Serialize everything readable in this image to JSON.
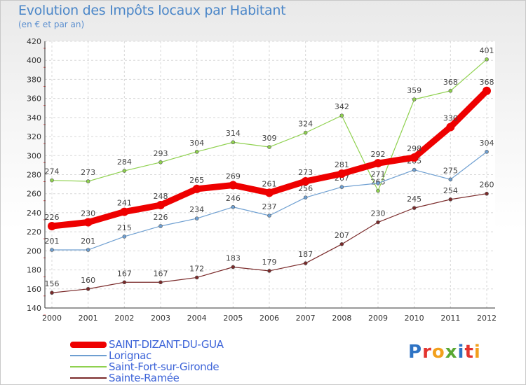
{
  "header": {
    "title": "Evolution des Impôts locaux par Habitant",
    "subtitle": "(en € et par an)"
  },
  "logo": {
    "text": "Proxiti",
    "letters": [
      {
        "ch": "P",
        "color": "#2e73c4"
      },
      {
        "ch": "r",
        "color": "#e3342f"
      },
      {
        "ch": "o",
        "color": "#f2a01c"
      },
      {
        "ch": "x",
        "color": "#5aa833"
      },
      {
        "ch": "i",
        "color": "#2e73c4"
      },
      {
        "ch": "t",
        "color": "#e3342f"
      },
      {
        "ch": "i",
        "color": "#f2a01c"
      }
    ]
  },
  "chart_data": {
    "type": "line",
    "title": "Evolution des Impôts locaux par Habitant",
    "subtitle": "(en € et par an)",
    "x": [
      "2000",
      "2001",
      "2002",
      "2003",
      "2004",
      "2005",
      "2006",
      "2007",
      "2008",
      "2009",
      "2010",
      "2011",
      "2012"
    ],
    "ylim": [
      140,
      420
    ],
    "yticks": [
      140,
      160,
      180,
      200,
      220,
      240,
      260,
      280,
      300,
      320,
      340,
      360,
      380,
      400,
      420
    ],
    "grid": true,
    "legend_position": "bottom-left",
    "series": [
      {
        "name": "Saint-Fort-sur-Gironde",
        "color": "#8fd14f",
        "width": 1.2,
        "marker": 5,
        "label_above": true,
        "values": [
          274,
          273,
          284,
          293,
          304,
          314,
          309,
          324,
          342,
          263,
          359,
          368,
          401
        ]
      },
      {
        "name": "Lorignac",
        "color": "#6e9fd1",
        "width": 1.2,
        "marker": 5,
        "label_above": true,
        "values": [
          201,
          201,
          215,
          226,
          234,
          246,
          237,
          256,
          267,
          271,
          285,
          275,
          304
        ]
      },
      {
        "name": "Sainte-Ramée",
        "color": "#7a2a2a",
        "width": 1.2,
        "marker": 5,
        "label_above": true,
        "values": [
          156,
          160,
          167,
          167,
          172,
          183,
          179,
          187,
          207,
          230,
          245,
          254,
          260
        ]
      },
      {
        "name": "SAINT-DIZANT-DU-GUA",
        "color": "#ee0000",
        "width": 9,
        "marker": 12,
        "label_above": true,
        "values": [
          226,
          230,
          241,
          248,
          265,
          269,
          261,
          273,
          281,
          292,
          298,
          330,
          368
        ]
      }
    ],
    "legend_order": [
      "SAINT-DIZANT-DU-GUA",
      "Lorignac",
      "Saint-Fort-sur-Gironde",
      "Sainte-Ramée"
    ]
  }
}
